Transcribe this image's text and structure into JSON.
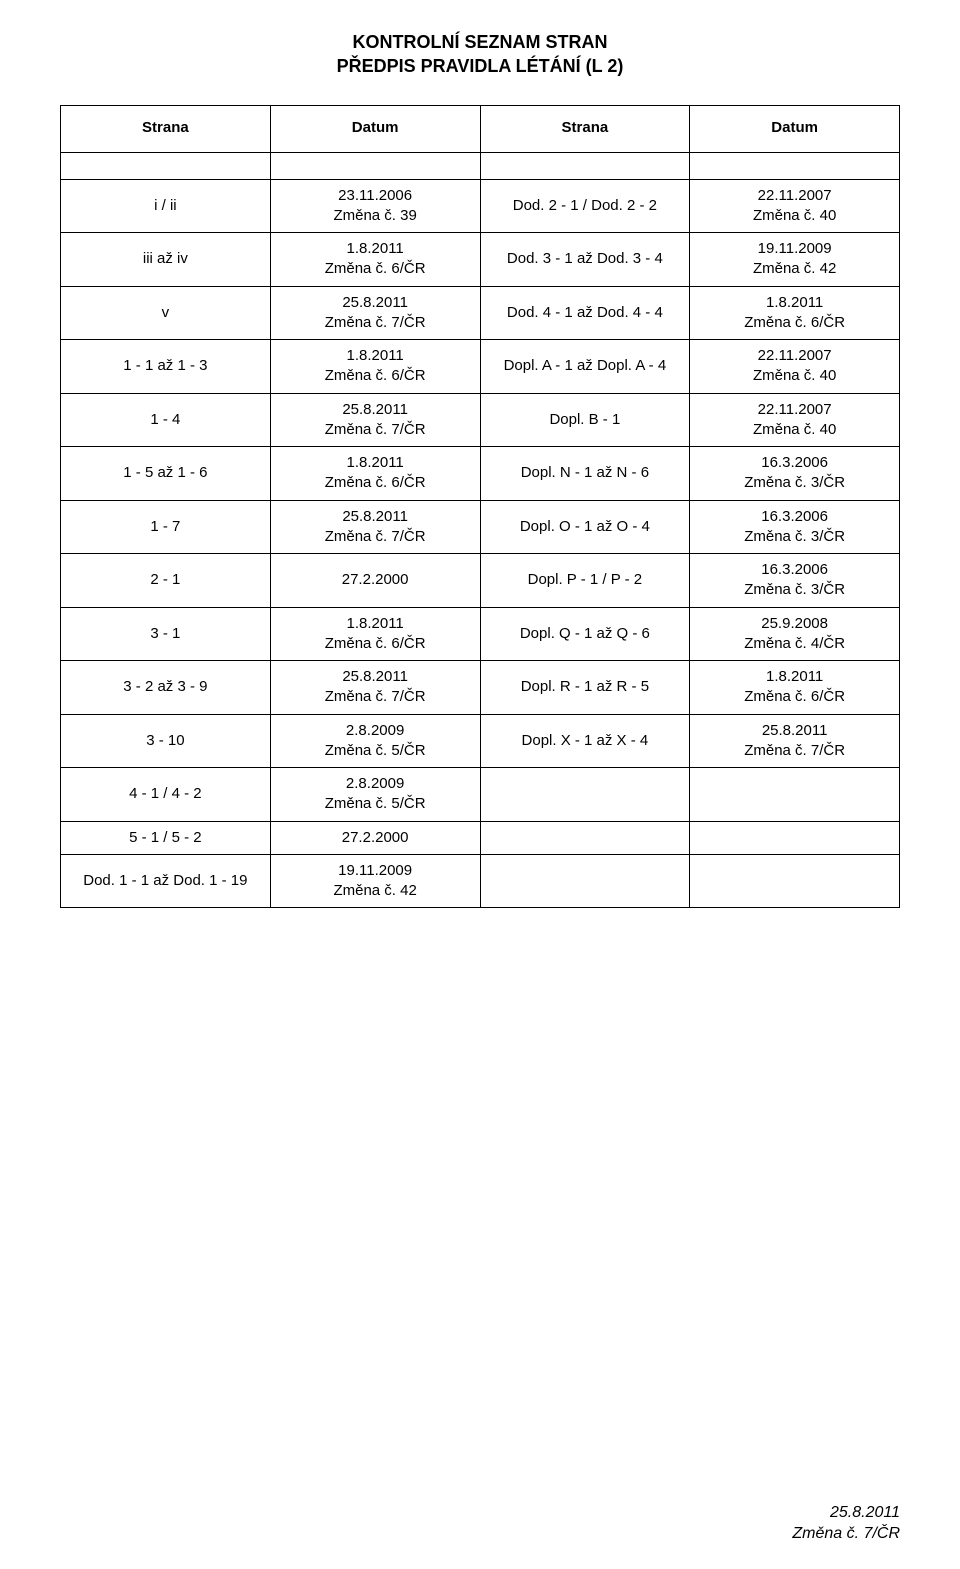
{
  "title_line1": "KONTROLNÍ SEZNAM STRAN",
  "title_line2": "PŘEDPIS PRAVIDLA LÉTÁNÍ (L 2)",
  "header": {
    "col1": "Strana",
    "col2": "Datum",
    "col3": "Strana",
    "col4": "Datum"
  },
  "rows": [
    {
      "c1": "i / ii",
      "c2": [
        "23.11.2006",
        "Změna č. 39"
      ],
      "c3": "Dod. 2 - 1 / Dod. 2 - 2",
      "c4": [
        "22.11.2007",
        "Změna č. 40"
      ]
    },
    {
      "c1": "iii až iv",
      "c2": [
        "1.8.2011",
        "Změna č. 6/ČR"
      ],
      "c3": "Dod. 3 - 1 až Dod. 3 - 4",
      "c4": [
        "19.11.2009",
        "Změna č. 42"
      ]
    },
    {
      "c1": "v",
      "c2": [
        "25.8.2011",
        "Změna č. 7/ČR"
      ],
      "c3": "Dod. 4 - 1 až Dod. 4 - 4",
      "c4": [
        "1.8.2011",
        "Změna č. 6/ČR"
      ]
    },
    {
      "c1": "1 - 1 až 1 - 3",
      "c2": [
        "1.8.2011",
        "Změna č. 6/ČR"
      ],
      "c3": "Dopl. A - 1 až Dopl. A - 4",
      "c4": [
        "22.11.2007",
        "Změna č. 40"
      ]
    },
    {
      "c1": "1 - 4",
      "c2": [
        "25.8.2011",
        "Změna č. 7/ČR"
      ],
      "c3": "Dopl. B - 1",
      "c4": [
        "22.11.2007",
        "Změna č. 40"
      ]
    },
    {
      "c1": "1 - 5 až 1 - 6",
      "c2": [
        "1.8.2011",
        "Změna č. 6/ČR"
      ],
      "c3": "Dopl. N - 1 až N - 6",
      "c4": [
        "16.3.2006",
        "Změna č. 3/ČR"
      ]
    },
    {
      "c1": "1 - 7",
      "c2": [
        "25.8.2011",
        "Změna č. 7/ČR"
      ],
      "c3": "Dopl. O - 1 až O - 4",
      "c4": [
        "16.3.2006",
        "Změna č. 3/ČR"
      ]
    },
    {
      "c1": "2 - 1",
      "c2": [
        "27.2.2000"
      ],
      "c3": "Dopl. P - 1 / P - 2",
      "c4": [
        "16.3.2006",
        "Změna č. 3/ČR"
      ]
    },
    {
      "c1": "3 - 1",
      "c2": [
        "1.8.2011",
        "Změna č. 6/ČR"
      ],
      "c3": "Dopl. Q - 1 až Q - 6",
      "c4": [
        "25.9.2008",
        "Změna č. 4/ČR"
      ]
    },
    {
      "c1": "3 - 2 až 3 - 9",
      "c2": [
        "25.8.2011",
        "Změna č. 7/ČR"
      ],
      "c3": "Dopl. R - 1 až R - 5",
      "c4": [
        "1.8.2011",
        "Změna č. 6/ČR"
      ]
    },
    {
      "c1": "3 - 10",
      "c2": [
        "2.8.2009",
        "Změna č. 5/ČR"
      ],
      "c3": "Dopl. X - 1 až X - 4",
      "c4": [
        "25.8.2011",
        "Změna č. 7/ČR"
      ]
    },
    {
      "c1": "4 - 1 / 4 - 2",
      "c2": [
        "2.8.2009",
        "Změna č. 5/ČR"
      ],
      "c3": "",
      "c4": []
    },
    {
      "c1": "5 - 1 / 5 - 2",
      "c2": [
        "27.2.2000"
      ],
      "c3": "",
      "c4": []
    },
    {
      "c1": "Dod. 1 - 1 až Dod. 1 - 19",
      "c2": [
        "19.11.2009",
        "Změna č. 42"
      ],
      "c3": "",
      "c4": []
    }
  ],
  "footer": {
    "line1": "25.8.2011",
    "line2": "Změna č. 7/ČR"
  },
  "styles": {
    "font_family": "Arial",
    "title_fontsize": 18,
    "cell_fontsize": 15,
    "footer_fontsize": 16,
    "text_color": "#000000",
    "background_color": "#ffffff",
    "border_color": "#000000",
    "col_widths_pct": [
      25,
      25,
      25,
      25
    ]
  }
}
